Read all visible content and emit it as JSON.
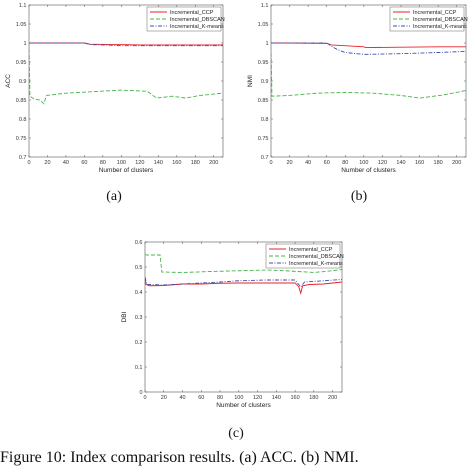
{
  "caption": "Figure 10: Index comparison results. (a) ACC. (b) NMI.",
  "colors": {
    "ccp": "#e8202a",
    "dbscan": "#46b44a",
    "kmeans": "#3f4fa8"
  },
  "chart_data": [
    {
      "type": "line",
      "panel_label": "(a)",
      "xlabel": "Number of clusters",
      "ylabel": "ACC",
      "xlim": [
        0,
        210
      ],
      "ylim": [
        0.7,
        1.1
      ],
      "xticks": [
        0,
        20,
        40,
        60,
        80,
        100,
        120,
        140,
        160,
        180,
        200
      ],
      "yticks": [
        0.7,
        0.75,
        0.8,
        0.85,
        0.9,
        0.95,
        1,
        1.05,
        1.1
      ],
      "grid": false,
      "legend_position": "top-right",
      "series": [
        {
          "name": "Incremental_CCP",
          "style": "solid",
          "color": "#e8202a",
          "points": [
            [
              0,
              1.0
            ],
            [
              10,
              1.0
            ],
            [
              30,
              1.0
            ],
            [
              60,
              1.0
            ],
            [
              66,
              0.997
            ],
            [
              90,
              0.996
            ],
            [
              120,
              0.995
            ],
            [
              150,
              0.995
            ],
            [
              180,
              0.995
            ],
            [
              210,
              0.995
            ]
          ]
        },
        {
          "name": "Incremental_DBSCAN",
          "style": "dashed",
          "color": "#46b44a",
          "points": [
            [
              0,
              1.0
            ],
            [
              1,
              0.86
            ],
            [
              6,
              0.852
            ],
            [
              12,
              0.85
            ],
            [
              16,
              0.84
            ],
            [
              19,
              0.862
            ],
            [
              40,
              0.868
            ],
            [
              70,
              0.872
            ],
            [
              100,
              0.876
            ],
            [
              128,
              0.873
            ],
            [
              138,
              0.855
            ],
            [
              155,
              0.86
            ],
            [
              170,
              0.855
            ],
            [
              185,
              0.862
            ],
            [
              210,
              0.868
            ]
          ]
        },
        {
          "name": "Incremental_K-means",
          "style": "dashdot",
          "color": "#3f4fa8",
          "points": [
            [
              0,
              1.0
            ],
            [
              30,
              1.0
            ],
            [
              60,
              1.0
            ],
            [
              66,
              0.996
            ],
            [
              100,
              0.993
            ],
            [
              150,
              0.993
            ],
            [
              210,
              0.993
            ]
          ]
        }
      ]
    },
    {
      "type": "line",
      "panel_label": "(b)",
      "xlabel": "Number of clusters",
      "ylabel": "NMI",
      "xlim": [
        0,
        210
      ],
      "ylim": [
        0.7,
        1.1
      ],
      "xticks": [
        0,
        20,
        40,
        60,
        80,
        100,
        120,
        140,
        160,
        180,
        200
      ],
      "yticks": [
        0.7,
        0.75,
        0.8,
        0.85,
        0.9,
        0.95,
        1,
        1.05,
        1.1
      ],
      "grid": false,
      "legend_position": "top-right",
      "series": [
        {
          "name": "Incremental_CCP",
          "style": "solid",
          "color": "#e8202a",
          "points": [
            [
              0,
              1.0
            ],
            [
              20,
              1.0
            ],
            [
              60,
              0.999
            ],
            [
              65,
              0.995
            ],
            [
              100,
              0.99
            ],
            [
              102,
              0.988
            ],
            [
              140,
              0.989
            ],
            [
              180,
              0.99
            ],
            [
              210,
              0.99
            ]
          ]
        },
        {
          "name": "Incremental_DBSCAN",
          "style": "dashed",
          "color": "#46b44a",
          "points": [
            [
              0,
              0.99
            ],
            [
              1,
              0.86
            ],
            [
              20,
              0.862
            ],
            [
              50,
              0.868
            ],
            [
              80,
              0.87
            ],
            [
              110,
              0.868
            ],
            [
              140,
              0.862
            ],
            [
              160,
              0.855
            ],
            [
              185,
              0.863
            ],
            [
              210,
              0.875
            ]
          ]
        },
        {
          "name": "Incremental_K-means",
          "style": "dashdot",
          "color": "#3f4fa8",
          "points": [
            [
              0,
              1.0
            ],
            [
              20,
              1.0
            ],
            [
              60,
              1.0
            ],
            [
              66,
              0.99
            ],
            [
              72,
              0.982
            ],
            [
              80,
              0.975
            ],
            [
              100,
              0.97
            ],
            [
              140,
              0.972
            ],
            [
              180,
              0.975
            ],
            [
              210,
              0.978
            ]
          ]
        }
      ]
    },
    {
      "type": "line",
      "panel_label": "(c)",
      "xlabel": "Number of clusters",
      "ylabel": "DBI",
      "xlim": [
        0,
        210
      ],
      "ylim": [
        0,
        0.6
      ],
      "xticks": [
        0,
        20,
        40,
        60,
        80,
        100,
        120,
        140,
        160,
        180,
        200
      ],
      "yticks": [
        0,
        0.1,
        0.2,
        0.3,
        0.4,
        0.5,
        0.6
      ],
      "grid": false,
      "legend_position": "top-right",
      "series": [
        {
          "name": "Incremental_CCP",
          "style": "solid",
          "color": "#e8202a",
          "points": [
            [
              0,
              0.46
            ],
            [
              1,
              0.43
            ],
            [
              5,
              0.425
            ],
            [
              20,
              0.426
            ],
            [
              40,
              0.432
            ],
            [
              60,
              0.432
            ],
            [
              80,
              0.435
            ],
            [
              100,
              0.436
            ],
            [
              130,
              0.436
            ],
            [
              160,
              0.436
            ],
            [
              164,
              0.42
            ],
            [
              166,
              0.395
            ],
            [
              168,
              0.425
            ],
            [
              175,
              0.43
            ],
            [
              190,
              0.432
            ],
            [
              210,
              0.44
            ]
          ]
        },
        {
          "name": "Incremental_DBSCAN",
          "style": "dashed",
          "color": "#46b44a",
          "points": [
            [
              0,
              0.55
            ],
            [
              2,
              0.548
            ],
            [
              16,
              0.548
            ],
            [
              18,
              0.48
            ],
            [
              40,
              0.478
            ],
            [
              70,
              0.482
            ],
            [
              100,
              0.485
            ],
            [
              130,
              0.488
            ],
            [
              150,
              0.485
            ],
            [
              180,
              0.478
            ],
            [
              200,
              0.485
            ],
            [
              210,
              0.49
            ]
          ]
        },
        {
          "name": "Incremental_K-means",
          "style": "dashdot",
          "color": "#3f4fa8",
          "points": [
            [
              0,
              0.46
            ],
            [
              2,
              0.43
            ],
            [
              20,
              0.428
            ],
            [
              40,
              0.432
            ],
            [
              60,
              0.436
            ],
            [
              80,
              0.44
            ],
            [
              100,
              0.445
            ],
            [
              130,
              0.448
            ],
            [
              160,
              0.448
            ],
            [
              166,
              0.42
            ],
            [
              170,
              0.44
            ],
            [
              190,
              0.445
            ],
            [
              210,
              0.45
            ]
          ]
        }
      ]
    }
  ]
}
